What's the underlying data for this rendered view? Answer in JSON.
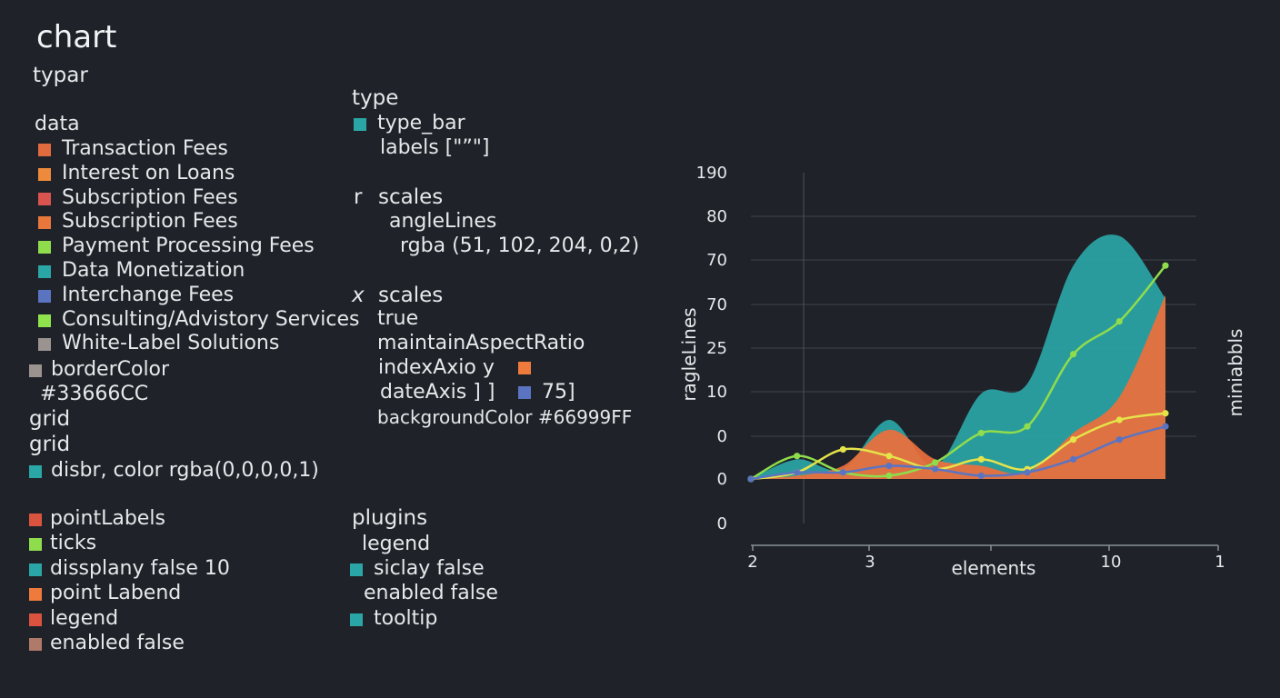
{
  "left": {
    "title": "chart",
    "subtitle": "typar",
    "data_label": "data",
    "dataset_labels": [
      {
        "text": "Transaction Fees",
        "color": "#e06b3f"
      },
      {
        "text": "Interest on Loans",
        "color": "#ee8a3b"
      },
      {
        "text": "Subscription Fees",
        "color": "#d9534f"
      },
      {
        "text": "Subscription Fees",
        "color": "#e8773c"
      },
      {
        "text": "Payment Processing Fees",
        "color": "#8fdc4c"
      },
      {
        "text": "Data Monetization",
        "color": "#2aa6a6"
      },
      {
        "text": "Interchange Fees",
        "color": "#5b74c2"
      },
      {
        "text": "Consulting/Advistory Services",
        "color": "#8fe34c"
      },
      {
        "text": "White-Label Solutions",
        "color": "#9a9390"
      }
    ],
    "border_color_label": "borderColor",
    "border_color_value": "#33666CC",
    "grid_1": "grid",
    "grid_2": "grid",
    "disbr_line": "disbr, color rgba(0,0,0,0,1)",
    "bottom_items": [
      {
        "text": "pointLabels",
        "color": "#d9533f"
      },
      {
        "text": "ticks",
        "color": "#8fdc4c"
      },
      {
        "text": "dissplany false  10",
        "color": "#2aa6a6"
      },
      {
        "text": "point Labend",
        "color": "#ee7a3b"
      },
      {
        "text": "legend",
        "color": "#d9533f"
      },
      {
        "text": "enabled false",
        "color": "#b07a6a"
      }
    ]
  },
  "middle": {
    "type_label": "type",
    "type_bar": "type_bar",
    "labels_line": "labels [\"”\"]",
    "r_label": "r",
    "scales_label": "scales",
    "angle_lines": "angleLines",
    "rgba_line": "rgba (51, 102, 204, 0,2)",
    "x_label": "x",
    "x_scales": "scales",
    "true_line": "true",
    "maintain_line": "maintainAspectRatio",
    "index_axis": "indexAxio y",
    "date_axis": "dateAxis ] ]",
    "seventy_five": "75]",
    "background_line": "backgroundColor #66999FF",
    "plugins_label": "plugins",
    "legend_label": "legend",
    "siclay_line": "siclay false",
    "enabled_line": "enabled false",
    "tooltip_line": "tooltip",
    "colors": {
      "teal": "#2aa6a6",
      "orange": "#ee7a3b",
      "blue": "#5b74c2"
    }
  },
  "chart_data": {
    "type": "area",
    "title": "",
    "xlabel": "elements",
    "ylabel": "ragleLines",
    "y2label": "miniabbls",
    "y_tick_labels": [
      "190",
      "80",
      "70",
      "70",
      "25",
      "10",
      "0",
      "0",
      "0"
    ],
    "x_tick_labels": [
      "2",
      "3",
      "10",
      "1"
    ],
    "grid": true,
    "legend": "none",
    "x": [
      0,
      1,
      2,
      3,
      4,
      5,
      6,
      7,
      8,
      9
    ],
    "series": [
      {
        "color": "#2aa6a6",
        "kind": "area",
        "values": [
          0,
          6,
          3,
          18,
          4,
          26,
          29,
          65,
          74,
          55
        ]
      },
      {
        "color": "#ee6f3b",
        "kind": "area",
        "values": [
          0,
          1,
          4,
          15,
          6,
          4,
          2,
          14,
          25,
          56
        ]
      },
      {
        "color": "#8fdc4c",
        "kind": "line",
        "values": [
          0,
          7,
          2,
          1,
          5,
          14,
          16,
          38,
          48,
          65
        ]
      },
      {
        "color": "#e6e34a",
        "kind": "line",
        "values": [
          0,
          2,
          9,
          7,
          3,
          6,
          3,
          12,
          18,
          20
        ]
      },
      {
        "color": "#5b74c2",
        "kind": "line",
        "values": [
          0,
          2,
          2,
          4,
          3,
          1,
          2,
          6,
          12,
          16
        ]
      }
    ]
  }
}
